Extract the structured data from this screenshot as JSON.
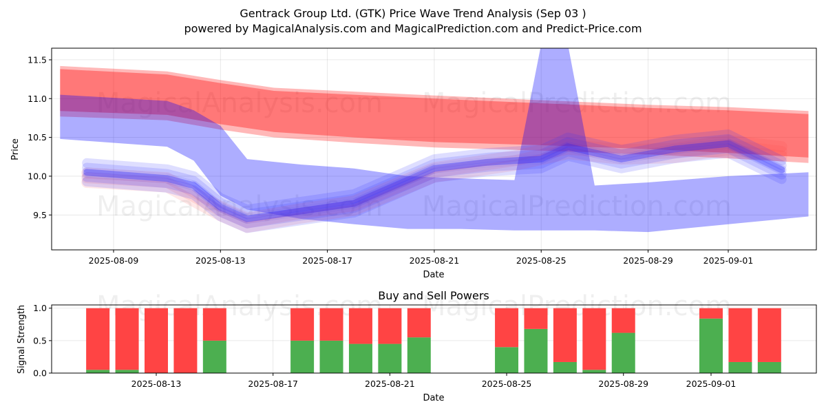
{
  "title_line1": "Gentrack Group Ltd. (GTK) Price Wave Trend Analysis (Sep 03 )",
  "title_line2": "powered by MagicalAnalysis.com and MagicalPrediction.com and Predict-Price.com",
  "watermarks": [
    "MagicalAnalysis.com",
    "MagicalPrediction.com"
  ],
  "colors": {
    "red_band": "#ff0000",
    "blue_band": "#0000ff",
    "buy": "#4caf50",
    "sell": "#ff4444"
  },
  "chart_data": [
    {
      "type": "area",
      "xlabel": "Date",
      "ylabel": "Price",
      "ylim": [
        9.05,
        11.65
      ],
      "x_ticks": [
        "2025-08-09",
        "2025-08-13",
        "2025-08-17",
        "2025-08-21",
        "2025-08-25",
        "2025-08-29",
        "2025-09-01"
      ],
      "y_ticks": [
        9.5,
        10.0,
        10.5,
        11.0,
        11.5
      ],
      "grid": true,
      "series": [
        {
          "color": "red",
          "x": [
            "2025-08-07",
            "2025-08-11",
            "2025-08-13",
            "2025-08-15",
            "2025-08-18",
            "2025-08-21",
            "2025-08-25",
            "2025-08-29",
            "2025-09-01",
            "2025-09-04"
          ],
          "upper": [
            11.4,
            11.33,
            11.22,
            11.12,
            11.07,
            11.02,
            10.96,
            10.9,
            10.87,
            10.82
          ],
          "lower": [
            10.82,
            10.77,
            10.65,
            10.55,
            10.48,
            10.42,
            10.38,
            10.33,
            10.28,
            10.22
          ]
        },
        {
          "color": "blue",
          "x": [
            "2025-08-07",
            "2025-08-11",
            "2025-08-12",
            "2025-08-13",
            "2025-08-14",
            "2025-08-16",
            "2025-08-18",
            "2025-08-20",
            "2025-08-22",
            "2025-08-24",
            "2025-08-25",
            "2025-08-26",
            "2025-08-27",
            "2025-08-29",
            "2025-09-01",
            "2025-09-04"
          ],
          "upper": [
            11.05,
            10.97,
            10.85,
            10.65,
            10.22,
            10.15,
            10.1,
            10.0,
            9.97,
            9.95,
            11.7,
            11.7,
            9.88,
            9.92,
            10.0,
            10.05
          ],
          "lower": [
            10.48,
            10.38,
            10.2,
            9.75,
            9.57,
            9.45,
            9.38,
            9.32,
            9.32,
            9.3,
            9.3,
            9.3,
            9.3,
            9.28,
            9.38,
            9.48
          ]
        },
        {
          "color": "blue-wave",
          "x": [
            "2025-08-08",
            "2025-08-11",
            "2025-08-12",
            "2025-08-13",
            "2025-08-14",
            "2025-08-16",
            "2025-08-18",
            "2025-08-20",
            "2025-08-21",
            "2025-08-23",
            "2025-08-25",
            "2025-08-26",
            "2025-08-28",
            "2025-08-30",
            "2025-09-01",
            "2025-09-03"
          ],
          "values": [
            10.05,
            9.97,
            9.88,
            9.6,
            9.45,
            9.55,
            9.65,
            9.95,
            10.1,
            10.18,
            10.22,
            10.38,
            10.22,
            10.35,
            10.42,
            10.08
          ]
        },
        {
          "color": "red-wave",
          "x": [
            "2025-08-08",
            "2025-08-11",
            "2025-08-13",
            "2025-08-14",
            "2025-08-16",
            "2025-08-18",
            "2025-08-21",
            "2025-08-24",
            "2025-08-26",
            "2025-08-28",
            "2025-08-30",
            "2025-09-01",
            "2025-09-03"
          ],
          "values": [
            9.98,
            9.92,
            9.55,
            9.4,
            9.52,
            9.62,
            10.05,
            10.2,
            10.35,
            10.28,
            10.3,
            10.4,
            10.32
          ]
        }
      ]
    },
    {
      "type": "bar",
      "title": "Buy and Sell Powers",
      "xlabel": "Date",
      "ylabel": "Signal Strength",
      "ylim": [
        0,
        1.05
      ],
      "y_ticks": [
        0.0,
        0.5,
        1.0
      ],
      "x_ticks": [
        "2025-08-13",
        "2025-08-17",
        "2025-08-21",
        "2025-08-25",
        "2025-08-29",
        "2025-09-01"
      ],
      "dates": [
        "2025-08-11",
        "2025-08-12",
        "2025-08-13",
        "2025-08-14",
        "2025-08-15",
        "2025-08-18",
        "2025-08-19",
        "2025-08-20",
        "2025-08-21",
        "2025-08-22",
        "2025-08-25",
        "2025-08-26",
        "2025-08-27",
        "2025-08-28",
        "2025-08-29",
        "2025-09-01",
        "2025-09-02",
        "2025-09-03"
      ],
      "series": [
        {
          "name": "buy",
          "values": [
            0.05,
            0.05,
            0.0,
            0.0,
            0.5,
            0.5,
            0.5,
            0.45,
            0.45,
            0.55,
            0.4,
            0.68,
            0.17,
            0.05,
            0.62,
            0.84,
            0.17,
            0.17
          ]
        },
        {
          "name": "sell",
          "values": [
            0.95,
            0.95,
            1.0,
            1.0,
            0.5,
            0.5,
            0.5,
            0.55,
            0.55,
            0.45,
            0.6,
            0.32,
            0.83,
            0.95,
            0.38,
            0.16,
            0.83,
            0.83
          ]
        }
      ]
    }
  ]
}
